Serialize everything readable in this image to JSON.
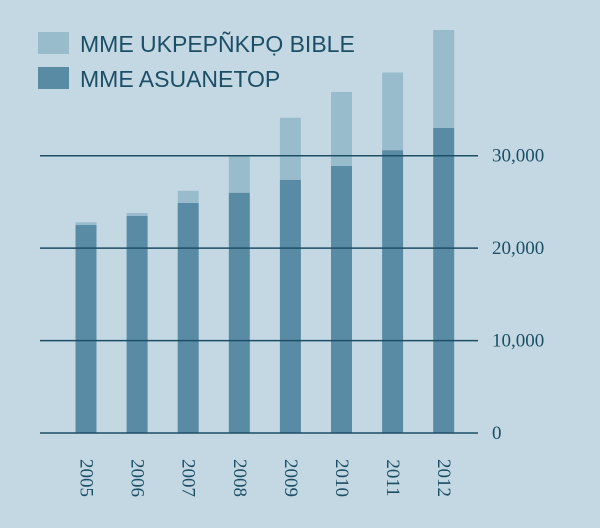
{
  "chart_data": {
    "type": "bar",
    "stacked": true,
    "categories": [
      "2005",
      "2006",
      "2007",
      "2008",
      "2009",
      "2010",
      "2011",
      "2012"
    ],
    "series": [
      {
        "name": "MME ASUANETOP",
        "color": "#5a8ba5",
        "values": [
          22500,
          23500,
          24900,
          26000,
          27400,
          28900,
          30600,
          33000
        ]
      },
      {
        "name": "MME UKPEPÑKPỌ BIBLE",
        "color": "#99bccd",
        "values": [
          300,
          300,
          1300,
          4000,
          6700,
          8000,
          8400,
          10600
        ]
      }
    ],
    "yticks": [
      {
        "value": 0,
        "label": "0"
      },
      {
        "value": 10000,
        "label": "10,000"
      },
      {
        "value": 20000,
        "label": "20,000"
      },
      {
        "value": 30000,
        "label": "30,000"
      }
    ],
    "ylim": [
      0,
      43600
    ],
    "legend_position": "top-left",
    "grid": true,
    "colors": {
      "background": "#c3d8e3",
      "gridline": "#1c4e66",
      "text": "#1c4e66"
    }
  }
}
